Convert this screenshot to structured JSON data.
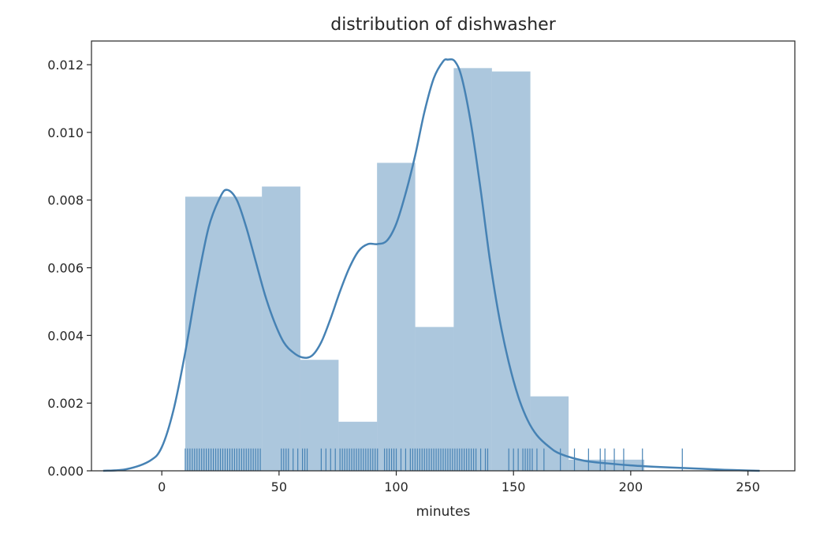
{
  "chart_data": {
    "type": "histogram",
    "title": "distribution of dishwasher",
    "xlabel": "minutes",
    "ylabel": "",
    "xlim": [
      -30,
      270
    ],
    "ylim": [
      0,
      0.0127
    ],
    "x_ticks": [
      0,
      50,
      100,
      150,
      200,
      250
    ],
    "y_ticks": [
      0.0,
      0.002,
      0.004,
      0.006,
      0.008,
      0.01,
      0.012
    ],
    "x_tick_labels": [
      "0",
      "50",
      "100",
      "150",
      "200",
      "250"
    ],
    "y_tick_labels": [
      "0.000",
      "0.002",
      "0.004",
      "0.006",
      "0.008",
      "0.010",
      "0.012"
    ],
    "grid": false,
    "histogram": {
      "bins": [
        {
          "x0": 10,
          "x1": 42.7,
          "value": 0.0081
        },
        {
          "x0": 42.7,
          "x1": 59.1,
          "value": 0.0084
        },
        {
          "x0": 59.1,
          "x1": 75.4,
          "value": 0.00328
        },
        {
          "x0": 75.4,
          "x1": 91.8,
          "value": 0.00145
        },
        {
          "x0": 91.8,
          "x1": 108.1,
          "value": 0.0091
        },
        {
          "x0": 108.1,
          "x1": 124.5,
          "value": 0.00425
        },
        {
          "x0": 124.5,
          "x1": 140.8,
          "value": 0.0119
        },
        {
          "x0": 140.8,
          "x1": 157.2,
          "value": 0.0118
        },
        {
          "x0": 157.2,
          "x1": 173.5,
          "value": 0.0022
        },
        {
          "x0": 173.5,
          "x1": 205.8,
          "value": 0.00033
        }
      ],
      "color": "#4682b4",
      "alpha": 0.45
    },
    "kde": {
      "color": "#4682b4",
      "x": [
        -25,
        -15,
        -5,
        0,
        5,
        10,
        15,
        20,
        25,
        28,
        32,
        36,
        40,
        44,
        48,
        52,
        56,
        60,
        64,
        68,
        72,
        76,
        80,
        84,
        88,
        92,
        96,
        100,
        104,
        108,
        112,
        116,
        120,
        122,
        125,
        128,
        132,
        136,
        140,
        144,
        148,
        152,
        156,
        160,
        165,
        170,
        180,
        190,
        200,
        210,
        220,
        230,
        240,
        250,
        255
      ],
      "y": [
        0.0,
        5e-05,
        0.0003,
        0.0007,
        0.0018,
        0.0035,
        0.0055,
        0.0072,
        0.0081,
        0.0083,
        0.008,
        0.0072,
        0.0062,
        0.0052,
        0.0044,
        0.0038,
        0.0035,
        0.00335,
        0.0034,
        0.0038,
        0.0045,
        0.0053,
        0.006,
        0.0065,
        0.0067,
        0.0067,
        0.0068,
        0.0073,
        0.0082,
        0.0093,
        0.0106,
        0.0116,
        0.0121,
        0.01215,
        0.0121,
        0.0116,
        0.0102,
        0.0083,
        0.0062,
        0.0045,
        0.0032,
        0.0022,
        0.0015,
        0.00105,
        0.00072,
        0.0005,
        0.0003,
        0.00022,
        0.00016,
        0.00012,
        9e-05,
        6e-05,
        3e-05,
        1e-05,
        0.0
      ]
    },
    "rug": {
      "color": "#4682b4",
      "values": [
        10,
        11,
        12,
        13,
        14,
        15,
        16,
        17,
        18,
        19,
        20,
        21,
        22,
        23,
        24,
        25,
        26,
        27,
        28,
        29,
        30,
        31,
        32,
        33,
        34,
        35,
        36,
        37,
        38,
        39,
        40,
        41,
        42,
        51,
        52,
        53,
        54,
        56,
        58,
        60,
        61,
        62,
        68,
        70,
        72,
        74,
        76,
        77,
        78,
        79,
        80,
        81,
        82,
        83,
        84,
        85,
        86,
        87,
        88,
        89,
        90,
        91,
        92,
        95,
        96,
        97,
        98,
        99,
        100,
        102,
        104,
        106,
        107,
        108,
        109,
        110,
        111,
        112,
        113,
        114,
        115,
        116,
        117,
        118,
        119,
        120,
        121,
        122,
        123,
        124,
        125,
        126,
        127,
        128,
        129,
        130,
        131,
        132,
        133,
        134,
        136,
        138,
        139,
        148,
        150,
        152,
        154,
        155,
        156,
        157,
        158,
        160,
        163,
        170,
        176,
        182,
        187,
        189,
        193,
        197,
        205,
        222
      ]
    }
  }
}
